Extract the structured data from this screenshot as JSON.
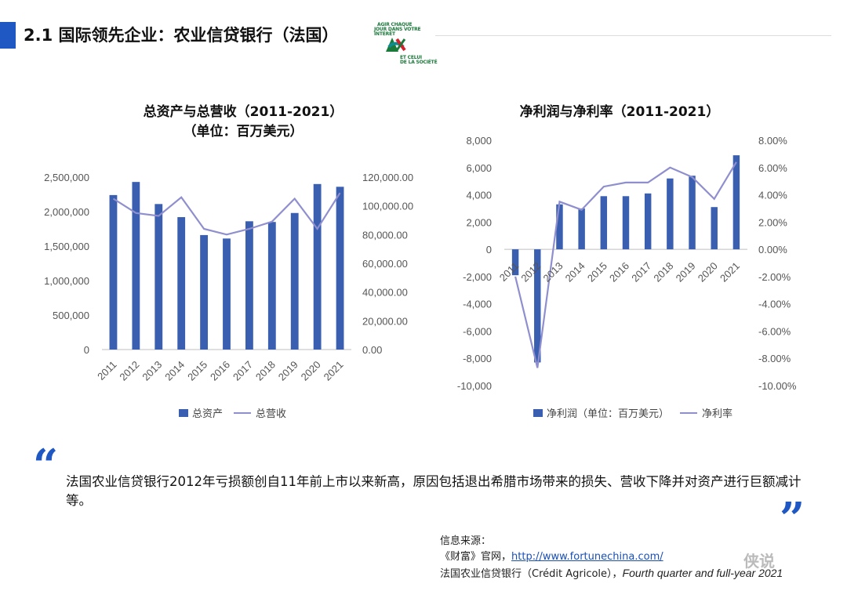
{
  "header": {
    "title": "2.1 国际领先企业：农业信贷银行（法国）"
  },
  "logo": {
    "line1": "AGIR CHAQUE",
    "line2": "JOUR DANS VOTRE",
    "line3": "INTÉRÊT",
    "line4": "ET CELUI",
    "line5": "DE LA SOCIÉTÉ",
    "colors": {
      "green": "#1a7a3a",
      "red": "#d4202a",
      "teal": "#0f8b8d"
    }
  },
  "chart_data": [
    {
      "type": "bar",
      "title": "总资产与总营收（2011-2021）",
      "subtitle": "（单位：百万美元）",
      "categories": [
        "2011",
        "2012",
        "2013",
        "2014",
        "2015",
        "2016",
        "2017",
        "2018",
        "2019",
        "2020",
        "2021"
      ],
      "series": [
        {
          "name": "总资产",
          "type": "bar",
          "axis": "left",
          "values": [
            2240000,
            2430000,
            2110000,
            1920000,
            1660000,
            1610000,
            1860000,
            1850000,
            1980000,
            2400000,
            2360000
          ]
        },
        {
          "name": "总营收",
          "type": "line",
          "axis": "right",
          "values": [
            105000,
            95000,
            93000,
            106000,
            84000,
            80000,
            84000,
            89000,
            105000,
            84000,
            109000
          ]
        }
      ],
      "ylim": [
        0,
        2500000
      ],
      "yticks": [
        "0",
        "500,000",
        "1,000,000",
        "1,500,000",
        "2,000,000",
        "2,500,000"
      ],
      "y2lim": [
        0,
        120000
      ],
      "y2ticks": [
        "0.00",
        "20,000.00",
        "40,000.00",
        "60,000.00",
        "80,000.00",
        "100,000.00",
        "120,000.00"
      ],
      "grid": false,
      "legend": "bottom",
      "colors": {
        "bar": "#3a5fb0",
        "line": "#8f8fcf"
      }
    },
    {
      "type": "bar",
      "title": "净利润与净利率（2011-2021）",
      "categories": [
        "2011",
        "2012",
        "2013",
        "2014",
        "2015",
        "2016",
        "2017",
        "2018",
        "2019",
        "2020",
        "2021"
      ],
      "series": [
        {
          "name": "净利润（单位：百万美元）",
          "type": "bar",
          "axis": "left",
          "values": [
            -1900,
            -8300,
            3300,
            3000,
            3900,
            3900,
            4100,
            5200,
            5400,
            3100,
            6900
          ]
        },
        {
          "name": "净利率",
          "type": "line",
          "axis": "right",
          "values": [
            -2.0,
            -8.7,
            3.5,
            2.9,
            4.6,
            4.9,
            4.9,
            6.0,
            5.3,
            3.7,
            6.4
          ]
        }
      ],
      "ylim": [
        -10000,
        8000
      ],
      "yticks": [
        "-10,000",
        "-8,000",
        "-6,000",
        "-4,000",
        "-2,000",
        "0",
        "2,000",
        "4,000",
        "6,000",
        "8,000"
      ],
      "y2lim": [
        -10,
        8
      ],
      "y2ticks": [
        "-10.00%",
        "-8.00%",
        "-6.00%",
        "-4.00%",
        "-2.00%",
        "0.00%",
        "2.00%",
        "4.00%",
        "6.00%",
        "8.00%"
      ],
      "grid": false,
      "legend": "bottom",
      "colors": {
        "bar": "#3a5fb0",
        "line": "#8f8fcf"
      }
    }
  ],
  "summary": {
    "open_quote": "“",
    "text": "法国农业信贷银行2012年亏损额创自11年前上市以来新高，原因包括退出希腊市场带来的损失、营收下降并对资产进行巨额减计等。",
    "close_quote": "”"
  },
  "source": {
    "label": "信息来源：",
    "line1_prefix": "《财富》官网，",
    "line1_link": "http://www.fortunechina.com/",
    "line2_prefix": "法国农业信贷银行（Crédit Agricole），",
    "line2_italic": "Fourth quarter and full-year 2021"
  },
  "watermark": "侠说",
  "accent_color": "#1f57c3"
}
